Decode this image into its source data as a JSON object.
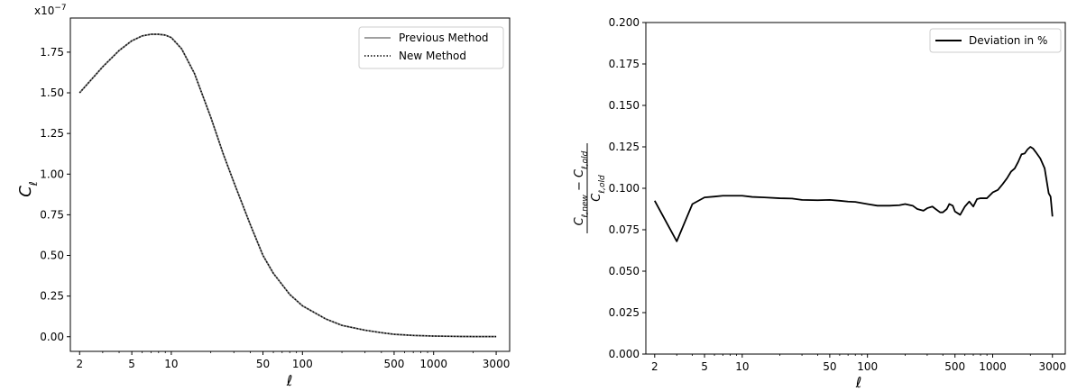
{
  "chart_data": [
    {
      "type": "line",
      "xscale": "log",
      "xlim": [
        1.7,
        3800
      ],
      "ylim": [
        -9e-09,
        1.96e-07
      ],
      "xticks": [
        2,
        5,
        10,
        50,
        100,
        500,
        1000,
        3000
      ],
      "xtick_labels": [
        "2",
        "5",
        "10",
        "50",
        "100",
        "500",
        "1000",
        "3000"
      ],
      "yticks": [
        0,
        2.5e-08,
        5e-08,
        7.5e-08,
        1e-07,
        1.25e-07,
        1.5e-07,
        1.75e-07
      ],
      "ytick_labels": [
        "0.00",
        "0.25",
        "0.50",
        "0.75",
        "1.00",
        "1.25",
        "1.50",
        "1.75"
      ],
      "offset_label": "x10",
      "offset_exponent": "−7",
      "xlabel": "ℓ",
      "ylabel": "C",
      "ylabel_sub": "ℓ",
      "grid": false,
      "legend_position": "top-right",
      "series": [
        {
          "name": "Previous Method",
          "color": "#808080",
          "style": "solid",
          "x": [
            2,
            3,
            4,
            5,
            6,
            7,
            8,
            9,
            10,
            12,
            15,
            20,
            25,
            30,
            40,
            50,
            60,
            80,
            100,
            150,
            200,
            300,
            400,
            500,
            700,
            1000,
            1500,
            2000,
            3000
          ],
          "y": [
            1.5e-07,
            1.66e-07,
            1.76e-07,
            1.82e-07,
            1.85e-07,
            1.86e-07,
            1.86e-07,
            1.855e-07,
            1.84e-07,
            1.77e-07,
            1.62e-07,
            1.35e-07,
            1.12e-07,
            9.5e-08,
            6.9e-08,
            5e-08,
            3.9e-08,
            2.6e-08,
            1.9e-08,
            1.1e-08,
            7e-09,
            4e-09,
            2.5e-09,
            1.5e-09,
            8e-10,
            4e-10,
            2e-10,
            1e-10,
            1e-10
          ]
        },
        {
          "name": "New Method",
          "color": "#000000",
          "style": "dotted",
          "x": [
            2,
            3,
            4,
            5,
            6,
            7,
            8,
            9,
            10,
            12,
            15,
            20,
            25,
            30,
            40,
            50,
            60,
            80,
            100,
            150,
            200,
            300,
            400,
            500,
            700,
            1000,
            1500,
            2000,
            3000
          ],
          "y": [
            1.5e-07,
            1.66e-07,
            1.76e-07,
            1.82e-07,
            1.85e-07,
            1.86e-07,
            1.86e-07,
            1.855e-07,
            1.84e-07,
            1.77e-07,
            1.62e-07,
            1.35e-07,
            1.12e-07,
            9.5e-08,
            6.9e-08,
            5e-08,
            3.9e-08,
            2.6e-08,
            1.9e-08,
            1.1e-08,
            7e-09,
            4e-09,
            2.5e-09,
            1.5e-09,
            8e-10,
            4e-10,
            2e-10,
            1e-10,
            1e-10
          ]
        }
      ]
    },
    {
      "type": "line",
      "xscale": "log",
      "xlim": [
        1.7,
        3800
      ],
      "ylim": [
        0.0,
        0.2
      ],
      "xticks": [
        2,
        5,
        10,
        50,
        100,
        500,
        1000,
        3000
      ],
      "xtick_labels": [
        "2",
        "5",
        "10",
        "50",
        "100",
        "500",
        "1000",
        "3000"
      ],
      "yticks": [
        0.0,
        0.025,
        0.05,
        0.075,
        0.1,
        0.125,
        0.15,
        0.175,
        0.2
      ],
      "ytick_labels": [
        "0.000",
        "0.025",
        "0.050",
        "0.075",
        "0.100",
        "0.125",
        "0.150",
        "0.175",
        "0.200"
      ],
      "xlabel": "ℓ",
      "ylabel_num": "C",
      "ylabel_num_sub1": "ℓ,new",
      "ylabel_minus": " − ",
      "ylabel_num_sub2": "ℓ,old",
      "ylabel_den": "C",
      "ylabel_den_sub": "ℓ,old",
      "grid": false,
      "legend_position": "top-right",
      "series": [
        {
          "name": "Deviation in %",
          "color": "#000000",
          "style": "solid",
          "x": [
            2,
            3,
            4,
            5,
            6,
            7,
            8,
            10,
            12,
            15,
            20,
            25,
            30,
            40,
            50,
            60,
            70,
            80,
            100,
            120,
            150,
            180,
            200,
            230,
            250,
            280,
            300,
            330,
            350,
            380,
            400,
            430,
            450,
            480,
            500,
            550,
            600,
            650,
            700,
            750,
            800,
            900,
            1000,
            1100,
            1200,
            1300,
            1400,
            1500,
            1600,
            1700,
            1800,
            1900,
            2000,
            2100,
            2200,
            2400,
            2600,
            2800,
            2900,
            3000
          ],
          "y": [
            0.0925,
            0.068,
            0.0905,
            0.0945,
            0.095,
            0.0955,
            0.0955,
            0.0955,
            0.0948,
            0.0945,
            0.094,
            0.0938,
            0.093,
            0.0928,
            0.093,
            0.0925,
            0.092,
            0.0918,
            0.0905,
            0.0895,
            0.0895,
            0.0898,
            0.0905,
            0.0895,
            0.0875,
            0.0865,
            0.088,
            0.089,
            0.0875,
            0.0855,
            0.0855,
            0.0875,
            0.0905,
            0.0895,
            0.086,
            0.084,
            0.089,
            0.092,
            0.089,
            0.0935,
            0.094,
            0.094,
            0.0975,
            0.099,
            0.1025,
            0.106,
            0.11,
            0.112,
            0.116,
            0.1205,
            0.121,
            0.1235,
            0.125,
            0.124,
            0.122,
            0.118,
            0.112,
            0.097,
            0.095,
            0.083
          ]
        }
      ]
    }
  ]
}
